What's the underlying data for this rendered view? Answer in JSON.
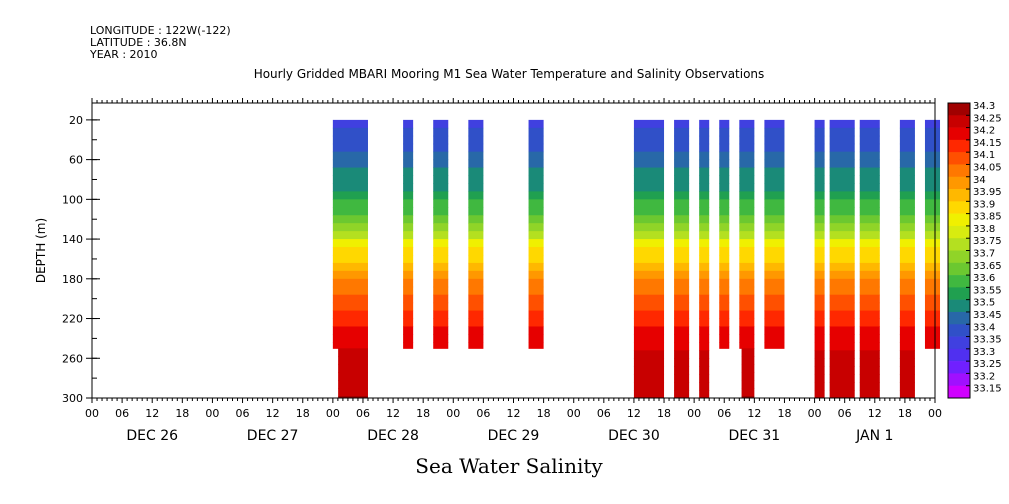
{
  "header": {
    "longitude": "LONGITUDE : 122W(-122)",
    "latitude": "LATITUDE : 36.8N",
    "year": "YEAR : 2010"
  },
  "chart_data": {
    "type": "heatmap",
    "title": "Hourly Gridded MBARI Mooring M1 Sea Water Temperature and Salinity Observations",
    "bottom_title": "Sea Water Salinity",
    "ylabel": "DEPTH (m)",
    "xlabel": "",
    "y_ticks": [
      20,
      60,
      100,
      140,
      180,
      220,
      260,
      300
    ],
    "ylim": [
      300,
      0
    ],
    "x_hour_ticks": [
      "00",
      "06",
      "12",
      "18",
      "00",
      "06",
      "12",
      "18",
      "00",
      "06",
      "12",
      "18",
      "00",
      "06",
      "12",
      "18",
      "00",
      "06",
      "12",
      "18",
      "00",
      "06",
      "12",
      "18",
      "00",
      "06",
      "12",
      "18",
      "00"
    ],
    "x_day_labels": [
      "DEC 26",
      "DEC 27",
      "DEC 28",
      "DEC 29",
      "DEC 30",
      "DEC 31",
      "JAN  1"
    ],
    "x_range_hours": [
      0,
      168
    ],
    "colorbar_levels": [
      "34.3",
      "34.25",
      "34.2",
      "34.15",
      "34.1",
      "34.05",
      "34",
      "33.95",
      "33.9",
      "33.85",
      "33.8",
      "33.75",
      "33.7",
      "33.65",
      "33.6",
      "33.55",
      "33.5",
      "33.45",
      "33.4",
      "33.35",
      "33.3",
      "33.25",
      "33.2",
      "33.15"
    ],
    "colorbar_colors": [
      "#a00000",
      "#c80000",
      "#e60000",
      "#ff2800",
      "#ff5000",
      "#ff7800",
      "#ff9800",
      "#ffb800",
      "#ffd800",
      "#f0f000",
      "#d8ec10",
      "#b4e020",
      "#90d428",
      "#6cc830",
      "#40b840",
      "#20a050",
      "#1a8a78",
      "#2868a8",
      "#3050c8",
      "#4040e0",
      "#5030f0",
      "#7020ff",
      "#a010ff",
      "#d000ff"
    ],
    "observation_columns": [
      {
        "start_hour": 48,
        "end_hour": 54,
        "max_depth": 250,
        "deep_max": 300
      },
      {
        "start_hour": 62,
        "end_hour": 63,
        "max_depth": 250
      },
      {
        "start_hour": 68,
        "end_hour": 70,
        "max_depth": 250
      },
      {
        "start_hour": 75,
        "end_hour": 77,
        "max_depth": 250
      },
      {
        "start_hour": 87,
        "end_hour": 89,
        "max_depth": 250
      },
      {
        "start_hour": 108,
        "end_hour": 113,
        "max_depth": 300
      },
      {
        "start_hour": 116,
        "end_hour": 118,
        "max_depth": 300
      },
      {
        "start_hour": 121,
        "end_hour": 122,
        "max_depth": 300
      },
      {
        "start_hour": 125,
        "end_hour": 126,
        "max_depth": 250
      },
      {
        "start_hour": 129,
        "end_hour": 131,
        "max_depth": 250,
        "deep_max": 300
      },
      {
        "start_hour": 134,
        "end_hour": 137,
        "max_depth": 250
      },
      {
        "start_hour": 144,
        "end_hour": 145,
        "max_depth": 300
      },
      {
        "start_hour": 147,
        "end_hour": 151,
        "max_depth": 300
      },
      {
        "start_hour": 153,
        "end_hour": 156,
        "max_depth": 300
      },
      {
        "start_hour": 161,
        "end_hour": 163,
        "max_depth": 300
      },
      {
        "start_hour": 166,
        "end_hour": 168,
        "max_depth": 250
      }
    ],
    "salinity_profile": [
      {
        "depth": 10,
        "value": 33.38
      },
      {
        "depth": 40,
        "value": 33.42
      },
      {
        "depth": 70,
        "value": 33.5
      },
      {
        "depth": 100,
        "value": 33.58
      },
      {
        "depth": 130,
        "value": 33.75
      },
      {
        "depth": 150,
        "value": 33.9
      },
      {
        "depth": 175,
        "value": 34.02
      },
      {
        "depth": 200,
        "value": 34.12
      },
      {
        "depth": 230,
        "value": 34.2
      },
      {
        "depth": 260,
        "value": 34.27
      },
      {
        "depth": 300,
        "value": 34.3
      }
    ],
    "grid": false
  }
}
